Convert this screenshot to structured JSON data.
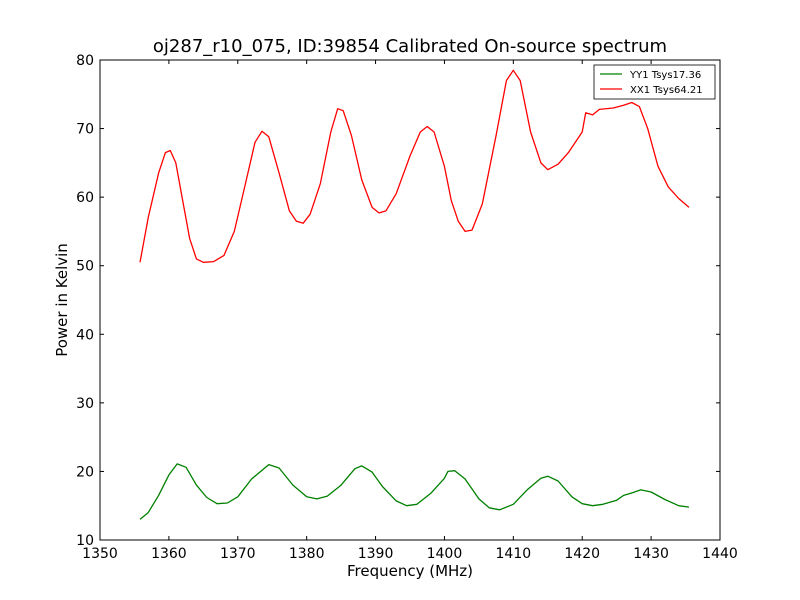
{
  "chart_data": {
    "type": "line",
    "title": "oj287_r10_075, ID:39854 Calibrated On-source spectrum",
    "xlabel": "Frequency (MHz)",
    "ylabel": "Power in Kelvin",
    "xlim": [
      1350,
      1440
    ],
    "ylim": [
      10,
      80
    ],
    "xticks": [
      1350,
      1360,
      1370,
      1380,
      1390,
      1400,
      1410,
      1420,
      1430,
      1440
    ],
    "yticks": [
      10,
      20,
      30,
      40,
      50,
      60,
      70,
      80
    ],
    "grid": false,
    "legend_position": "top-right",
    "series": [
      {
        "name": "YY1 Tsys17.36",
        "color": "#008000",
        "points": [
          [
            1355.8,
            13.0
          ],
          [
            1357.0,
            14.0
          ],
          [
            1358.5,
            16.5
          ],
          [
            1360.0,
            19.5
          ],
          [
            1361.2,
            21.1
          ],
          [
            1362.5,
            20.6
          ],
          [
            1364.0,
            18.0
          ],
          [
            1365.5,
            16.2
          ],
          [
            1367.0,
            15.3
          ],
          [
            1368.5,
            15.4
          ],
          [
            1370.0,
            16.3
          ],
          [
            1372.0,
            18.9
          ],
          [
            1374.5,
            21.0
          ],
          [
            1376.0,
            20.5
          ],
          [
            1378.0,
            18.0
          ],
          [
            1380.0,
            16.3
          ],
          [
            1381.5,
            16.0
          ],
          [
            1383.0,
            16.4
          ],
          [
            1385.0,
            18.0
          ],
          [
            1387.0,
            20.4
          ],
          [
            1388.0,
            20.8
          ],
          [
            1389.5,
            19.9
          ],
          [
            1391.0,
            17.8
          ],
          [
            1393.0,
            15.7
          ],
          [
            1394.5,
            15.0
          ],
          [
            1396.0,
            15.2
          ],
          [
            1398.0,
            16.8
          ],
          [
            1400.0,
            19.0
          ],
          [
            1400.5,
            20.0
          ],
          [
            1401.5,
            20.1
          ],
          [
            1403.0,
            18.9
          ],
          [
            1405.0,
            16.0
          ],
          [
            1406.5,
            14.7
          ],
          [
            1408.0,
            14.4
          ],
          [
            1410.0,
            15.2
          ],
          [
            1412.0,
            17.3
          ],
          [
            1414.0,
            19.0
          ],
          [
            1415.0,
            19.3
          ],
          [
            1416.5,
            18.6
          ],
          [
            1418.5,
            16.3
          ],
          [
            1420.0,
            15.3
          ],
          [
            1421.5,
            15.0
          ],
          [
            1423.0,
            15.2
          ],
          [
            1425.0,
            15.8
          ],
          [
            1426.0,
            16.5
          ],
          [
            1427.0,
            16.8
          ],
          [
            1428.5,
            17.3
          ],
          [
            1430.0,
            17.0
          ],
          [
            1432.0,
            15.9
          ],
          [
            1434.0,
            15.0
          ],
          [
            1435.5,
            14.8
          ]
        ]
      },
      {
        "name": "XX1 Tsys64.21",
        "color": "#ff0000",
        "points": [
          [
            1355.8,
            50.5
          ],
          [
            1357.0,
            57.0
          ],
          [
            1358.5,
            63.5
          ],
          [
            1359.5,
            66.5
          ],
          [
            1360.2,
            66.8
          ],
          [
            1361.0,
            65.0
          ],
          [
            1362.0,
            59.5
          ],
          [
            1363.0,
            54.0
          ],
          [
            1364.0,
            51.0
          ],
          [
            1365.0,
            50.5
          ],
          [
            1366.5,
            50.6
          ],
          [
            1368.0,
            51.5
          ],
          [
            1369.5,
            55.0
          ],
          [
            1371.0,
            61.5
          ],
          [
            1372.5,
            68.0
          ],
          [
            1373.5,
            69.6
          ],
          [
            1374.5,
            68.8
          ],
          [
            1376.0,
            63.5
          ],
          [
            1377.5,
            58.0
          ],
          [
            1378.5,
            56.5
          ],
          [
            1379.5,
            56.2
          ],
          [
            1380.5,
            57.5
          ],
          [
            1382.0,
            62.0
          ],
          [
            1383.5,
            69.5
          ],
          [
            1384.5,
            72.9
          ],
          [
            1385.3,
            72.6
          ],
          [
            1386.5,
            69.0
          ],
          [
            1388.0,
            62.5
          ],
          [
            1389.5,
            58.5
          ],
          [
            1390.5,
            57.7
          ],
          [
            1391.5,
            58.0
          ],
          [
            1393.0,
            60.5
          ],
          [
            1395.0,
            66.0
          ],
          [
            1396.5,
            69.5
          ],
          [
            1397.5,
            70.3
          ],
          [
            1398.5,
            69.5
          ],
          [
            1400.0,
            64.5
          ],
          [
            1401.0,
            59.5
          ],
          [
            1402.0,
            56.5
          ],
          [
            1403.0,
            55.0
          ],
          [
            1404.0,
            55.2
          ],
          [
            1405.5,
            59.0
          ],
          [
            1407.5,
            69.0
          ],
          [
            1409.0,
            77.0
          ],
          [
            1410.0,
            78.5
          ],
          [
            1411.0,
            77.0
          ],
          [
            1412.5,
            69.5
          ],
          [
            1414.0,
            65.0
          ],
          [
            1415.0,
            64.0
          ],
          [
            1416.5,
            64.8
          ],
          [
            1418.0,
            66.5
          ],
          [
            1420.0,
            69.5
          ],
          [
            1420.5,
            72.3
          ],
          [
            1421.5,
            72.0
          ],
          [
            1422.5,
            72.8
          ],
          [
            1424.5,
            73.0
          ],
          [
            1426.0,
            73.4
          ],
          [
            1427.2,
            73.8
          ],
          [
            1428.3,
            73.2
          ],
          [
            1429.5,
            70.0
          ],
          [
            1431.0,
            64.5
          ],
          [
            1432.5,
            61.5
          ],
          [
            1434.0,
            59.8
          ],
          [
            1435.5,
            58.5
          ]
        ]
      }
    ]
  }
}
